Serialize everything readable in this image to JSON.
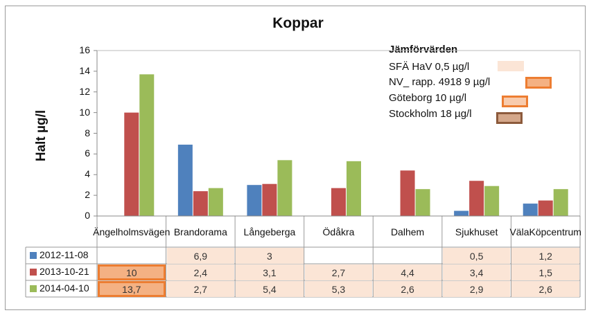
{
  "chart_data": {
    "type": "bar",
    "title": "Koppar",
    "ylabel": "Halt µg/l",
    "ylim": [
      0,
      16
    ],
    "yticks": [
      0,
      2,
      4,
      6,
      8,
      10,
      12,
      14,
      16
    ],
    "categories": [
      [
        "Ängelholms",
        "vägen"
      ],
      [
        "Brandorama"
      ],
      [
        "Långeberga"
      ],
      [
        "Ödåkra"
      ],
      [
        "Dalhem"
      ],
      [
        "Sjukhuset"
      ],
      [
        "Väla",
        "Köpcentrum"
      ]
    ],
    "series": [
      {
        "name": "2012-11-08",
        "color": "#4f81bd",
        "values": [
          null,
          6.9,
          3,
          null,
          null,
          0.5,
          1.2
        ],
        "labels": [
          "",
          "6,9",
          "3",
          "",
          "",
          "0,5",
          "1,2"
        ]
      },
      {
        "name": "2013-10-21",
        "color": "#c0504d",
        "values": [
          10,
          2.4,
          3.1,
          2.7,
          4.4,
          3.4,
          1.5
        ],
        "labels": [
          "10",
          "2,4",
          "3,1",
          "2,7",
          "4,4",
          "3,4",
          "1,5"
        ]
      },
      {
        "name": "2014-04-10",
        "color": "#9bbb59",
        "values": [
          13.7,
          2.7,
          5.4,
          5.3,
          2.6,
          2.9,
          2.6
        ],
        "labels": [
          "13,7",
          "2,7",
          "5,4",
          "5,3",
          "2,6",
          "2,9",
          "2,6"
        ]
      }
    ],
    "reference": {
      "heading": "Jämförvärden",
      "items": [
        {
          "label": "SFÄ HaV   0,5 µg/l",
          "fill": "#fbe5d6",
          "border": "#fbe5d6"
        },
        {
          "label": "NV_ rapp. 4918   9 µg/l",
          "fill": "#f4b183",
          "border": "#ed7d31"
        },
        {
          "label": "Göteborg  10 µg/l",
          "fill": "#f8cbad",
          "border": "#ed7d31"
        },
        {
          "label": "Stockholm  18 µg/l",
          "fill": "#d4a78a",
          "border": "#8c5a3c"
        }
      ]
    },
    "cell_fills": [
      [
        "none",
        "#fbe5d6",
        "#fbe5d6",
        "none",
        "none",
        "#fbe5d6",
        "#fbe5d6"
      ],
      [
        "#f4b183",
        "#fbe5d6",
        "#fbe5d6",
        "#fbe5d6",
        "#fbe5d6",
        "#fbe5d6",
        "#fbe5d6"
      ],
      [
        "#f4b183",
        "#fbe5d6",
        "#fbe5d6",
        "#fbe5d6",
        "#fbe5d6",
        "#fbe5d6",
        "#fbe5d6"
      ]
    ],
    "cell_borders": [
      [
        "none",
        "none",
        "none",
        "none",
        "none",
        "none",
        "none"
      ],
      [
        "#ed7d31",
        "none",
        "none",
        "none",
        "none",
        "none",
        "none"
      ],
      [
        "#ed7d31",
        "none",
        "none",
        "none",
        "none",
        "none",
        "none"
      ]
    ],
    "grid": false,
    "legend": "table-left"
  }
}
